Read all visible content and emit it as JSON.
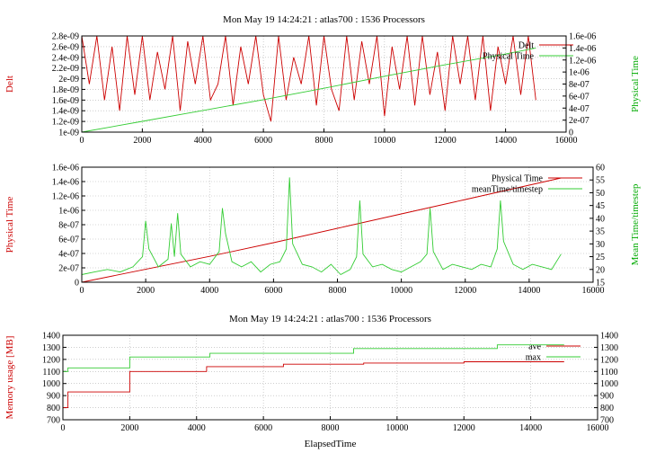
{
  "colors": {
    "red": "#cc0000",
    "green": "#33cc33",
    "grid": "#b0b0b0"
  },
  "chart_data": [
    {
      "type": "line",
      "title": "Mon May 19 14:24:21 : atlas700 : 1536 Processors",
      "xlabel": "",
      "ylabel_left": "Delt",
      "ylabel_right": "Physical Time",
      "xlim": [
        0,
        16000
      ],
      "ylim_left": [
        1e-09,
        2.8e-09
      ],
      "ylim_right": [
        0,
        1.6e-06
      ],
      "xticks": [
        "0",
        "2000",
        "4000",
        "6000",
        "8000",
        "10000",
        "12000",
        "14000",
        "16000"
      ],
      "yticks_left": [
        "1e-09",
        "1.2e-09",
        "1.4e-09",
        "1.6e-09",
        "1.8e-09",
        "2e-09",
        "2.2e-09",
        "2.4e-09",
        "2.6e-09",
        "2.8e-09"
      ],
      "yticks_right": [
        "0",
        "2e-07",
        "4e-07",
        "6e-07",
        "8e-07",
        "1e-06",
        "1.2e-06",
        "1.4e-06",
        "1.6e-06"
      ],
      "grid": true,
      "legend": "top-right",
      "series": [
        {
          "name": "Delt",
          "axis": "left",
          "color": "#cc0000",
          "x": [
            0,
            250,
            500,
            750,
            1000,
            1250,
            1500,
            1750,
            2000,
            2250,
            2500,
            2750,
            3000,
            3250,
            3500,
            3750,
            4000,
            4250,
            4500,
            4750,
            5000,
            5250,
            5500,
            5750,
            6000,
            6250,
            6500,
            6750,
            7000,
            7250,
            7500,
            7750,
            8000,
            8250,
            8500,
            8750,
            9000,
            9250,
            9500,
            9750,
            10000,
            10250,
            10500,
            10750,
            11000,
            11250,
            11500,
            11750,
            12000,
            12250,
            12500,
            12750,
            13000,
            13250,
            13500,
            13750,
            14000,
            14250,
            14500,
            14750,
            15000
          ],
          "values": [
            2.8e-09,
            1.9e-09,
            2.8e-09,
            1.6e-09,
            2.6e-09,
            1.4e-09,
            2.8e-09,
            1.7e-09,
            2.8e-09,
            1.6e-09,
            2.5e-09,
            1.8e-09,
            2.8e-09,
            1.4e-09,
            2.7e-09,
            1.9e-09,
            2.8e-09,
            1.6e-09,
            1.9e-09,
            2.8e-09,
            1.5e-09,
            2.6e-09,
            1.9e-09,
            2.8e-09,
            1.7e-09,
            1.2e-09,
            2.8e-09,
            1.6e-09,
            2.4e-09,
            1.9e-09,
            2.8e-09,
            1.5e-09,
            2.8e-09,
            1.8e-09,
            1.4e-09,
            2.8e-09,
            1.6e-09,
            2.7e-09,
            1.9e-09,
            2.8e-09,
            1.3e-09,
            2.6e-09,
            1.8e-09,
            2.8e-09,
            1.5e-09,
            2.8e-09,
            1.7e-09,
            2.5e-09,
            1.4e-09,
            2.8e-09,
            1.9e-09,
            2.8e-09,
            1.6e-09,
            2.8e-09,
            1.4e-09,
            2.6e-09,
            1.9e-09,
            2.8e-09,
            1.7e-09,
            2.8e-09,
            1.6e-09
          ]
        },
        {
          "name": "Physical Time",
          "axis": "right",
          "color": "#33cc33",
          "x": [
            0,
            2000,
            4000,
            6000,
            8000,
            10000,
            12000,
            14000,
            15000
          ],
          "values": [
            0,
            1.8e-07,
            3.6e-07,
            5.4e-07,
            7.3e-07,
            9.3e-07,
            1.12e-06,
            1.3e-06,
            1.4e-06
          ]
        }
      ]
    },
    {
      "type": "line",
      "title": "",
      "xlabel": "",
      "ylabel_left": "Physical Time",
      "ylabel_right": "Mean Time/timestep",
      "xlim": [
        0,
        16000
      ],
      "ylim_left": [
        0,
        1.6e-06
      ],
      "ylim_right": [
        15,
        60
      ],
      "xticks": [
        "0",
        "2000",
        "4000",
        "6000",
        "8000",
        "10000",
        "12000",
        "14000",
        "16000"
      ],
      "yticks_left": [
        "0",
        "2e-07",
        "4e-07",
        "6e-07",
        "8e-07",
        "1e-06",
        "1.2e-06",
        "1.4e-06",
        "1.6e-06"
      ],
      "yticks_right": [
        "15",
        "20",
        "25",
        "30",
        "35",
        "40",
        "45",
        "50",
        "55",
        "60"
      ],
      "grid": true,
      "legend": "top-right",
      "series": [
        {
          "name": "Physical Time",
          "axis": "left",
          "color": "#cc0000",
          "x": [
            0,
            2000,
            4000,
            6000,
            8000,
            10000,
            12000,
            14000,
            15000
          ],
          "values": [
            0,
            1.8e-07,
            3.6e-07,
            5.5e-07,
            7.5e-07,
            9.5e-07,
            1.15e-06,
            1.35e-06,
            1.45e-06
          ]
        },
        {
          "name": "meanTime/timestep",
          "axis": "right",
          "color": "#33cc33",
          "x": [
            0,
            400,
            800,
            1200,
            1600,
            1900,
            2000,
            2100,
            2400,
            2700,
            2800,
            2900,
            3000,
            3100,
            3400,
            3700,
            4000,
            4300,
            4400,
            4500,
            4700,
            5000,
            5300,
            5600,
            5900,
            6200,
            6400,
            6500,
            6600,
            6900,
            7200,
            7500,
            7800,
            8100,
            8400,
            8600,
            8700,
            8800,
            9100,
            9400,
            9700,
            10000,
            10300,
            10600,
            10800,
            10900,
            11000,
            11300,
            11600,
            11900,
            12200,
            12500,
            12800,
            13000,
            13100,
            13200,
            13500,
            13800,
            14100,
            14400,
            14700,
            15000
          ],
          "values": [
            18,
            19,
            20,
            19,
            21,
            25,
            39,
            28,
            21,
            24,
            38,
            25,
            42,
            26,
            21,
            23,
            22,
            27,
            44,
            34,
            23,
            21,
            23,
            19,
            22,
            23,
            28,
            56,
            30,
            22,
            21,
            19,
            22,
            18,
            20,
            25,
            47,
            26,
            21,
            22,
            20,
            19,
            21,
            23,
            26,
            44,
            27,
            20,
            22,
            21,
            20,
            22,
            21,
            28,
            47,
            31,
            22,
            20,
            22,
            21,
            20,
            26
          ]
        }
      ]
    },
    {
      "type": "line",
      "title": "Mon May 19 14:24:21 : atlas700 : 1536 Processors",
      "xlabel": "ElapsedTime",
      "ylabel_left": "Memory usage [MB]",
      "ylabel_right": "",
      "xlim": [
        0,
        16000
      ],
      "ylim_left": [
        700,
        1400
      ],
      "ylim_right": [
        700,
        1400
      ],
      "xticks": [
        "0",
        "2000",
        "4000",
        "6000",
        "8000",
        "10000",
        "12000",
        "14000",
        "16000"
      ],
      "yticks_left": [
        "700",
        "800",
        "900",
        "1000",
        "1100",
        "1200",
        "1300",
        "1400"
      ],
      "yticks_right": [
        "700",
        "800",
        "900",
        "1000",
        "1100",
        "1200",
        "1300",
        "1400"
      ],
      "grid": true,
      "legend": "top-right",
      "series": [
        {
          "name": "ave",
          "axis": "left",
          "color": "#cc0000",
          "step": true,
          "x": [
            0,
            100,
            150,
            1900,
            2000,
            4000,
            4300,
            6500,
            6600,
            9000,
            12000,
            15000
          ],
          "values": [
            800,
            800,
            930,
            930,
            1100,
            1100,
            1140,
            1140,
            1160,
            1170,
            1180,
            1180
          ]
        },
        {
          "name": "max",
          "axis": "left",
          "color": "#33cc33",
          "step": true,
          "x": [
            0,
            100,
            150,
            1900,
            2000,
            4200,
            4400,
            8500,
            8700,
            12800,
            13000,
            15000
          ],
          "values": [
            1100,
            1100,
            1130,
            1130,
            1220,
            1220,
            1250,
            1250,
            1290,
            1290,
            1320,
            1320
          ]
        }
      ]
    }
  ]
}
